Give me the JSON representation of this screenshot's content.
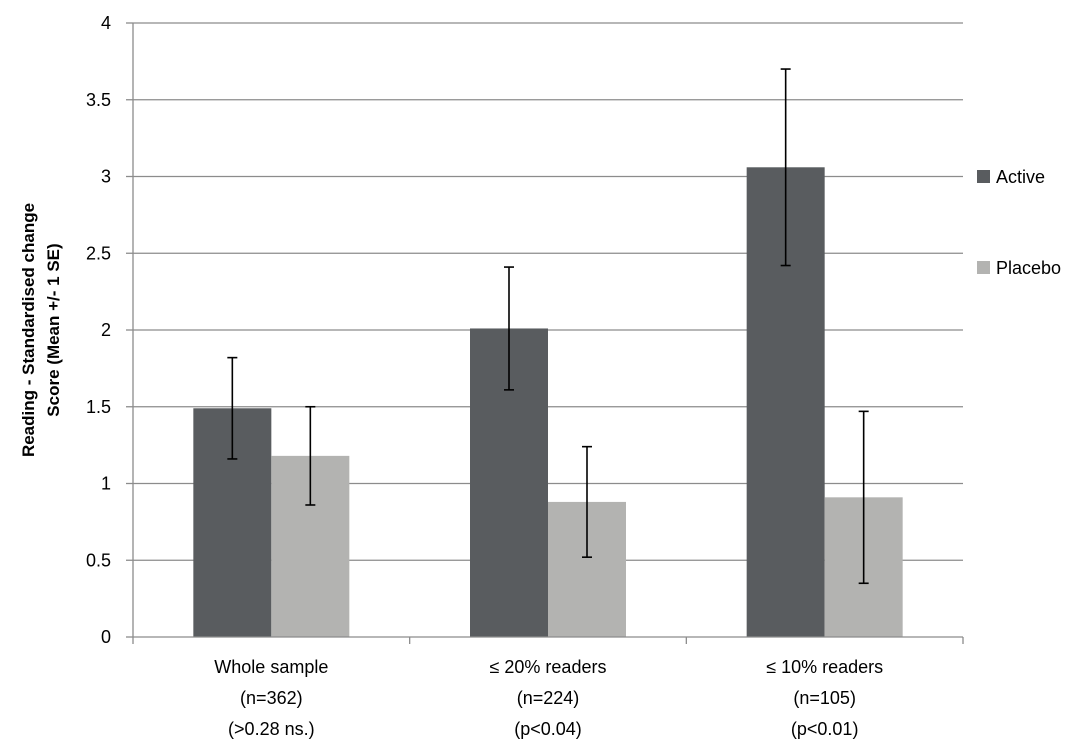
{
  "chart_data": {
    "type": "bar",
    "title": "",
    "xlabel": "",
    "ylabel_lines": [
      "Reading - Standardised change",
      "Score (Mean +/- 1 SE)"
    ],
    "ylim": [
      0,
      4
    ],
    "ytick_step": 0.5,
    "yticks": [
      "0",
      "0.5",
      "1",
      "1.5",
      "2",
      "2.5",
      "3",
      "3.5",
      "4"
    ],
    "grid": true,
    "legend_position": "right",
    "categories": [
      {
        "lines": [
          "Whole sample",
          "(n=362)",
          "(>0.28 ns.)"
        ]
      },
      {
        "lines": [
          "≤ 20% readers",
          "(n=224)",
          "(p<0.04)"
        ]
      },
      {
        "lines": [
          "≤ 10% readers",
          "(n=105)",
          "(p<0.01)"
        ]
      }
    ],
    "series": [
      {
        "name": "Active",
        "color": "#595c5f",
        "values": [
          1.49,
          2.01,
          3.06
        ],
        "error": [
          0.33,
          0.4,
          0.64
        ]
      },
      {
        "name": "Placebo",
        "color": "#b3b3b1",
        "values": [
          1.18,
          0.88,
          0.91
        ],
        "error": [
          0.32,
          0.36,
          0.56
        ]
      }
    ]
  }
}
